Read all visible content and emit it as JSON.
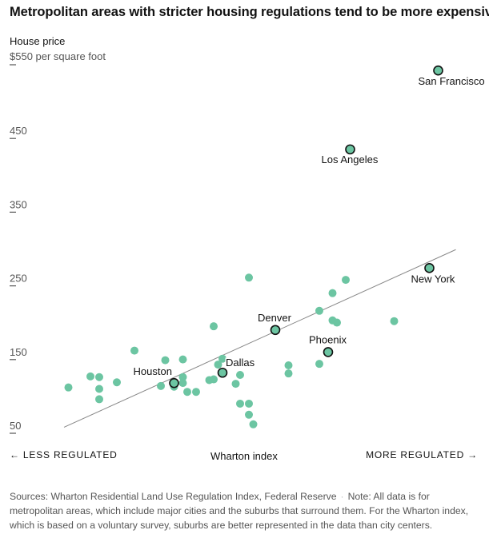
{
  "title": "Metropolitan areas with stricter housing regulations tend to be more expensive",
  "footer": {
    "sources": "Sources: Wharton Residential Land Use Regulation Index, Federal Reserve",
    "separator": "·",
    "note": "Note: All data is for metropolitan areas, which include major cities and the suburbs that surround them. For the Wharton index, which is based on a voluntary survey, suburbs are better represented in the data than city centers."
  },
  "colors": {
    "dot": "#6cc5a2",
    "highlight_stroke": "#111111",
    "trend": "#888888",
    "text": "#121212",
    "muted": "#555555"
  },
  "chart_data": {
    "type": "scatter",
    "ylabel": "House price",
    "yunit": "$550 per square foot",
    "xlabel": "Wharton index",
    "x_left_label": "← LESS REGULATED",
    "x_right_label": "MORE REGULATED →",
    "yticks": [
      "50",
      "150",
      "250",
      "350",
      "450"
    ],
    "ylim": [
      50,
      560
    ],
    "xlim": [
      0,
      100
    ],
    "grid": false,
    "highlighted": [
      {
        "name": "San Francisco",
        "x": 91,
        "y": 540
      },
      {
        "name": "Los Angeles",
        "x": 71,
        "y": 433
      },
      {
        "name": "New York",
        "x": 89,
        "y": 272
      },
      {
        "name": "Denver",
        "x": 54,
        "y": 188
      },
      {
        "name": "Phoenix",
        "x": 66,
        "y": 158
      },
      {
        "name": "Dallas",
        "x": 42,
        "y": 130
      },
      {
        "name": "Houston",
        "x": 31,
        "y": 116
      }
    ],
    "points": [
      {
        "x": 7,
        "y": 110
      },
      {
        "x": 12,
        "y": 125
      },
      {
        "x": 14,
        "y": 124
      },
      {
        "x": 14,
        "y": 108
      },
      {
        "x": 14,
        "y": 94
      },
      {
        "x": 18,
        "y": 117
      },
      {
        "x": 22,
        "y": 160
      },
      {
        "x": 28,
        "y": 112
      },
      {
        "x": 29,
        "y": 147
      },
      {
        "x": 31,
        "y": 111
      },
      {
        "x": 33,
        "y": 148
      },
      {
        "x": 33,
        "y": 124
      },
      {
        "x": 33,
        "y": 116
      },
      {
        "x": 34,
        "y": 104
      },
      {
        "x": 36,
        "y": 104
      },
      {
        "x": 39,
        "y": 120
      },
      {
        "x": 40,
        "y": 193
      },
      {
        "x": 40,
        "y": 121
      },
      {
        "x": 41,
        "y": 141
      },
      {
        "x": 42,
        "y": 149
      },
      {
        "x": 45,
        "y": 115
      },
      {
        "x": 46,
        "y": 127
      },
      {
        "x": 46,
        "y": 88
      },
      {
        "x": 48,
        "y": 259
      },
      {
        "x": 48,
        "y": 88
      },
      {
        "x": 48,
        "y": 73
      },
      {
        "x": 49,
        "y": 60
      },
      {
        "x": 57,
        "y": 140
      },
      {
        "x": 57,
        "y": 129
      },
      {
        "x": 64,
        "y": 142
      },
      {
        "x": 64,
        "y": 214
      },
      {
        "x": 67,
        "y": 238
      },
      {
        "x": 67,
        "y": 201
      },
      {
        "x": 68,
        "y": 198
      },
      {
        "x": 70,
        "y": 256
      },
      {
        "x": 81,
        "y": 200
      }
    ],
    "trendline": {
      "x": [
        6,
        95
      ],
      "y": [
        56,
        297
      ]
    }
  }
}
